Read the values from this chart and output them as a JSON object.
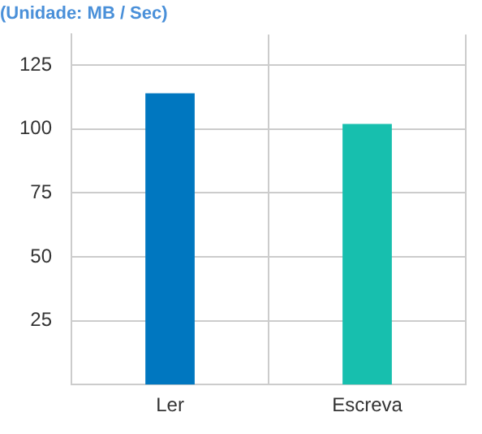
{
  "chart_data": {
    "type": "bar",
    "title": "(Unidade: MB / Sec)",
    "categories": [
      "Ler",
      "Escreva"
    ],
    "values": [
      114,
      102
    ],
    "colors": [
      "#0077c0",
      "#17bfae"
    ],
    "ylim": [
      0,
      137
    ],
    "yticks": [
      25,
      50,
      75,
      100,
      125
    ],
    "grid": true,
    "legend": false
  }
}
